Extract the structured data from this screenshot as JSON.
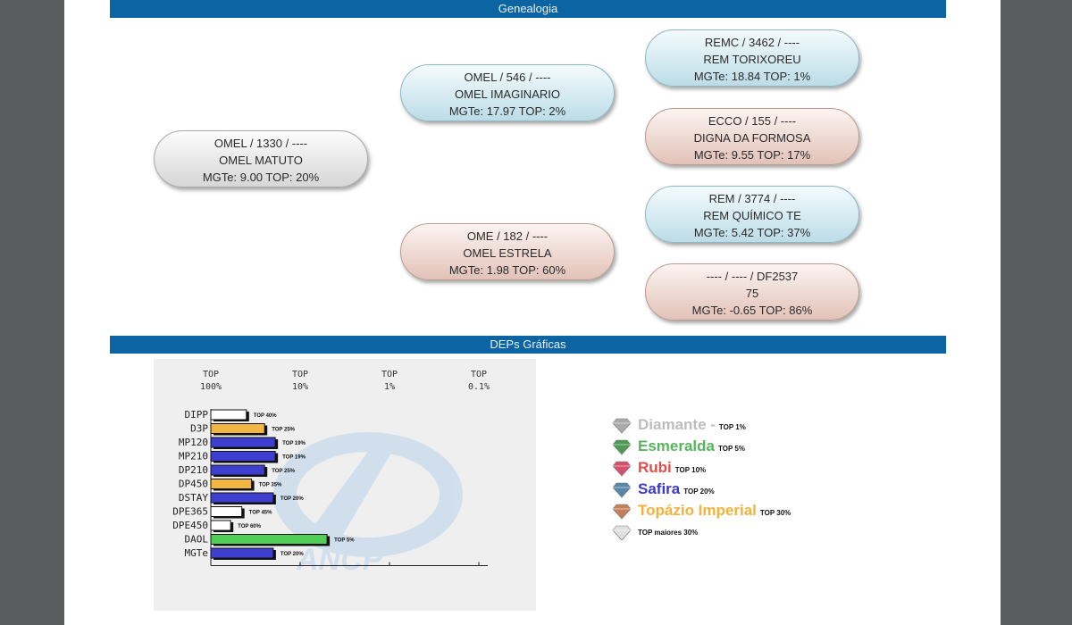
{
  "sections": {
    "genealogia": "Genealogia",
    "deps": "DEPs Gráficas"
  },
  "pedigree": {
    "root": {
      "line1": "OMEL / 1330 / ----",
      "line2": "OMEL MATUTO",
      "line3": "MGTe: 9.00   TOP: 20%",
      "color": "gray"
    },
    "sire": {
      "line1": "OMEL / 546 / ----",
      "line2": "OMEL IMAGINARIO",
      "line3": "MGTe: 17.97   TOP: 2%",
      "color": "blue"
    },
    "dam": {
      "line1": "OME / 182 / ----",
      "line2": "OMEL ESTRELA",
      "line3": "MGTe: 1.98   TOP: 60%",
      "color": "pink"
    },
    "ss": {
      "line1": "REMC / 3462 / ----",
      "line2": "REM TORIXOREU",
      "line3": "MGTe: 18.84   TOP: 1%",
      "color": "blue"
    },
    "sd": {
      "line1": "ECCO / 155 / ----",
      "line2": "DIGNA DA FORMOSA",
      "line3": "MGTe: 9.55   TOP: 17%",
      "color": "pink"
    },
    "ds": {
      "line1": "REM / 3774 / ----",
      "line2": "REM QUÍMICO TE",
      "line3": "MGTe: 5.42   TOP: 37%",
      "color": "blue"
    },
    "dd": {
      "line1": "---- / ---- / DF2537",
      "line2": "75",
      "line3": "MGTe: -0.65   TOP: 86%",
      "color": "pink"
    }
  },
  "chart_data": {
    "type": "bar",
    "orientation": "horizontal",
    "x_ticks": [
      {
        "line1": "TOP",
        "line2": "100%"
      },
      {
        "line1": "TOP",
        "line2": "10%"
      },
      {
        "line1": "TOP",
        "line2": "1%"
      },
      {
        "line1": "TOP",
        "line2": "0.1%"
      }
    ],
    "xscale": "log (TOP percentile)",
    "categories": [
      "DIPP",
      "D3P",
      "MP120",
      "MP210",
      "DP210",
      "DP450",
      "DSTAY",
      "DPE365",
      "DPE450",
      "DAOL",
      "MGTe"
    ],
    "values_top_percent": [
      40,
      25,
      19,
      19,
      25,
      35,
      20,
      45,
      60,
      5,
      20
    ],
    "bar_labels": [
      "TOP 40%",
      "TOP 25%",
      "TOP 19%",
      "TOP 19%",
      "TOP 25%",
      "TOP 35%",
      "TOP 20%",
      "TOP 45%",
      "TOP 60%",
      "TOP 5%",
      "TOP 20%"
    ],
    "bar_colors": [
      "#ffffff",
      "#f2b642",
      "#3e3fd0",
      "#3e3fd0",
      "#3e3fd0",
      "#f2b642",
      "#3e3fd0",
      "#ffffff",
      "#ffffff",
      "#4fcf55",
      "#3e3fd0"
    ],
    "grid": false,
    "watermark": "ANCP"
  },
  "legend": [
    {
      "name": "Diamante -",
      "top": "TOP 1%",
      "color": "#bdbdbd",
      "gem": "#a9a9a9"
    },
    {
      "name": "Esmeralda",
      "top": "TOP 5%",
      "color": "#5ab35e",
      "gem": "#4e9a55"
    },
    {
      "name": "Rubi",
      "top": "TOP 10%",
      "color": "#e84a4a",
      "gem": "#d4506e"
    },
    {
      "name": "Safira",
      "top": "TOP 20%",
      "color": "#3c39c9",
      "gem": "#5a86a8"
    },
    {
      "name": "Topázio Imperial",
      "top": "TOP 30%",
      "color": "#f4b23c",
      "gem": "#c4805a"
    },
    {
      "name": "TOP maiores 30%",
      "top": "",
      "color": "#111111",
      "gem": "#e0e0e0"
    }
  ]
}
